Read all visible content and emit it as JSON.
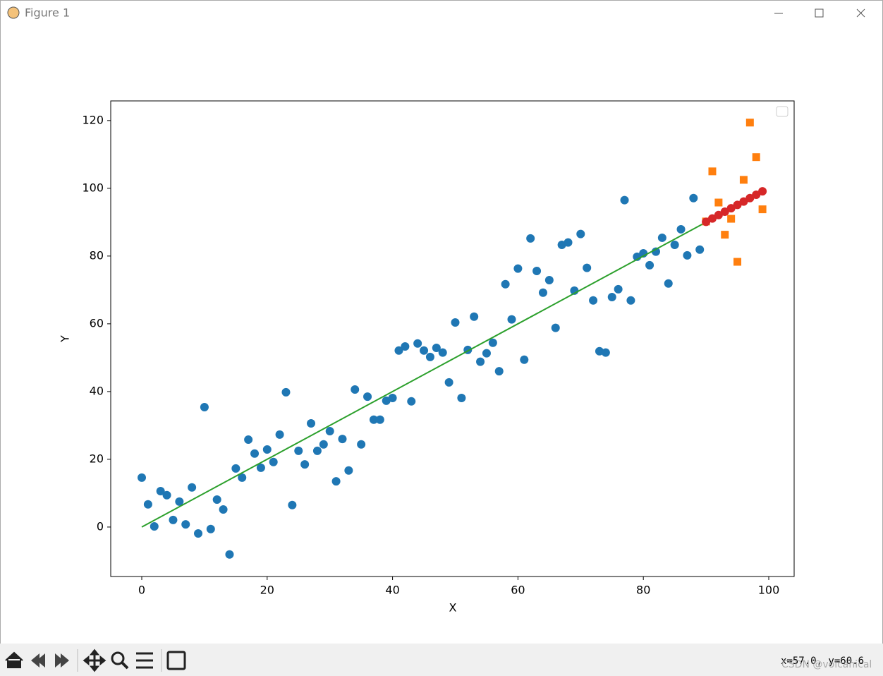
{
  "window": {
    "title": "Figure 1",
    "status": "x=57.0, y=60.6",
    "watermark": "CSDN @volcanical"
  },
  "chart_data": {
    "type": "scatter",
    "xlabel": "X",
    "ylabel": "Y",
    "xlim": [
      -4.95,
      104.05
    ],
    "ylim": [
      -14.6,
      125.8
    ],
    "xticks": [
      0,
      20,
      40,
      60,
      80,
      100
    ],
    "yticks": [
      0,
      20,
      40,
      60,
      80,
      100,
      120
    ],
    "series": [
      {
        "kind": "scatter",
        "marker": "circle",
        "color": "#1f77b4",
        "x": [
          0,
          1,
          2,
          3,
          4,
          5,
          6,
          7,
          8,
          9,
          10,
          11,
          12,
          13,
          14,
          15,
          16,
          17,
          18,
          19,
          20,
          21,
          22,
          23,
          24,
          25,
          26,
          27,
          28,
          29,
          30,
          31,
          32,
          33,
          34,
          35,
          36,
          37,
          38,
          39,
          40,
          41,
          42,
          43,
          44,
          45,
          46,
          47,
          48,
          49,
          50,
          51,
          52,
          53,
          54,
          55,
          56,
          57,
          58,
          59,
          60,
          61,
          62,
          63,
          64,
          65,
          66,
          67,
          68,
          69,
          70,
          71,
          72,
          73,
          74,
          75,
          76,
          77,
          78,
          79,
          80,
          81,
          82,
          83,
          84,
          85,
          86,
          87,
          88,
          89
        ],
        "values": [
          14.6,
          6.7,
          0.2,
          10.6,
          9.4,
          2.1,
          7.5,
          0.8,
          11.7,
          -1.9,
          35.4,
          -0.6,
          8.1,
          5.2,
          -8.1,
          17.3,
          14.6,
          25.8,
          21.7,
          17.5,
          22.9,
          19.2,
          27.3,
          39.8,
          6.5,
          22.5,
          18.5,
          30.6,
          22.5,
          24.4,
          28.3,
          13.5,
          26.0,
          16.7,
          40.6,
          24.4,
          38.5,
          31.7,
          31.7,
          37.3,
          38.1,
          52.1,
          53.3,
          37.1,
          54.2,
          52.1,
          50.2,
          52.9,
          51.5,
          42.7,
          60.4,
          38.1,
          52.3,
          62.1,
          48.8,
          51.3,
          54.4,
          46.0,
          71.7,
          61.3,
          76.3,
          49.4,
          85.2,
          75.6,
          69.2,
          72.9,
          58.8,
          83.3,
          84.0,
          69.8,
          86.5,
          76.5,
          66.9,
          51.9,
          51.5,
          67.9,
          70.2,
          96.5,
          66.9,
          79.8,
          80.8,
          77.3,
          81.3,
          85.4,
          71.9,
          83.3,
          87.9,
          80.2,
          97.1,
          81.9
        ]
      },
      {
        "kind": "line",
        "color": "#2ca02c",
        "x": [
          0,
          90
        ],
        "values": [
          0,
          90
        ]
      },
      {
        "kind": "scatter",
        "marker": "square",
        "color": "#ff7f0e",
        "x": [
          90,
          91,
          92,
          93,
          94,
          95,
          96,
          97,
          98,
          99
        ],
        "values": [
          90.2,
          105.0,
          95.8,
          86.3,
          91.0,
          78.3,
          102.5,
          119.4,
          109.2,
          93.8
        ]
      },
      {
        "kind": "line",
        "marker": "circle",
        "color": "#d62728",
        "x": [
          90,
          91,
          92,
          93,
          94,
          95,
          96,
          97,
          98,
          99
        ],
        "values": [
          90.1,
          91.1,
          92.1,
          93.1,
          94.1,
          95.1,
          96.1,
          97.1,
          98.1,
          99.1
        ]
      }
    ]
  }
}
